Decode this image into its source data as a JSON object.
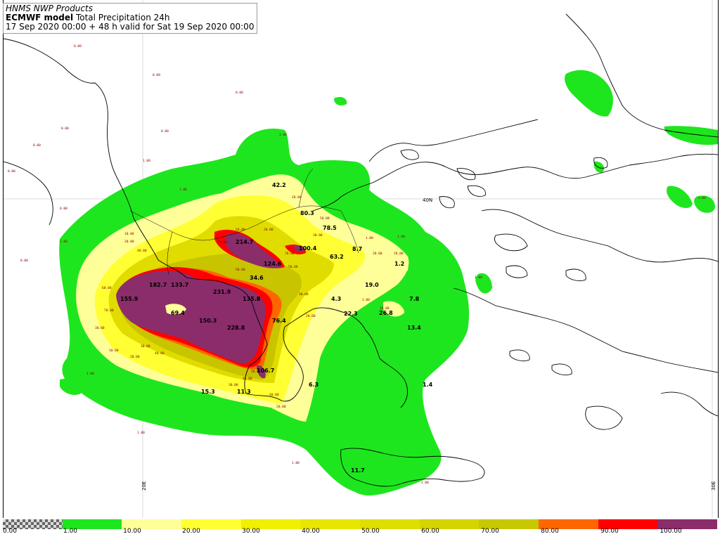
{
  "header": {
    "line1": "HNMS NWP Products",
    "model": "ECMWF model",
    "product": " Total Precipitation 24h",
    "line3": "17 Sep 2020 00:00 + 48 h valid for Sat 19 Sep 2020 00:00"
  },
  "map": {
    "lat_label": "40N",
    "lon_labels": [
      "20E",
      "30E"
    ],
    "background": "#ffffff",
    "coastline_color": "#000000"
  },
  "legend": {
    "labels": [
      "0.00",
      "1.00",
      "10.00",
      "20.00",
      "30.00",
      "40.00",
      "50.00",
      "60.00",
      "70.00",
      "80.00",
      "90.00",
      "100.00"
    ],
    "colors": [
      "#checker",
      "#1ee61e",
      "#ffff99",
      "#ffff33",
      "#f0f000",
      "#e8e600",
      "#dede00",
      "#d4d400",
      "#c8c800",
      "#ff6600",
      "#ff0000",
      "#8b2d6b"
    ]
  },
  "values": [
    {
      "t": "42.2"
    },
    {
      "t": "80.3"
    },
    {
      "t": "78.5"
    },
    {
      "t": "214.7"
    },
    {
      "t": "100.4"
    },
    {
      "t": "63.2"
    },
    {
      "t": "8.7"
    },
    {
      "t": "124.6"
    },
    {
      "t": "34.6"
    },
    {
      "t": "182.7"
    },
    {
      "t": "133.7"
    },
    {
      "t": "155.9"
    },
    {
      "t": "231.9"
    },
    {
      "t": "135.8"
    },
    {
      "t": "69.4"
    },
    {
      "t": "150.3"
    },
    {
      "t": "228.8"
    },
    {
      "t": "76.4"
    },
    {
      "t": "4.3"
    },
    {
      "t": "19.0"
    },
    {
      "t": "7.8"
    },
    {
      "t": "22.3"
    },
    {
      "t": "26.8"
    },
    {
      "t": "13.4"
    },
    {
      "t": "106.7"
    },
    {
      "t": "15.3"
    },
    {
      "t": "11.3"
    },
    {
      "t": "6.3"
    },
    {
      "t": "1.4"
    },
    {
      "t": "11.7"
    },
    {
      "t": "1.2"
    }
  ]
}
